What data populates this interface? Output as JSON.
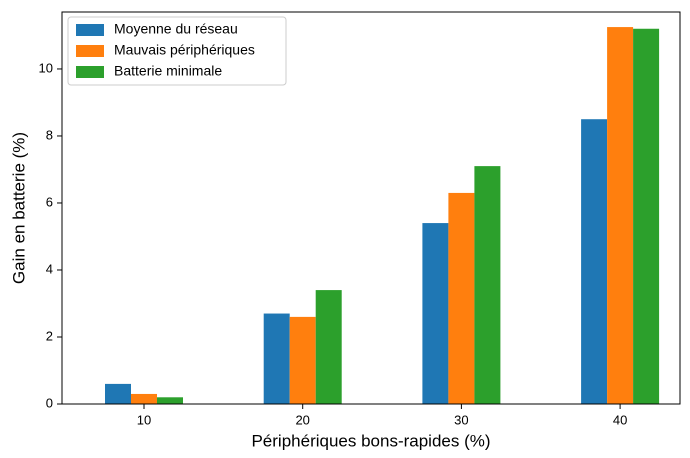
{
  "chart_data": {
    "type": "bar",
    "xlabel": "Périphériques bons-rapides (%)",
    "ylabel": "Gain en batterie (%)",
    "categories": [
      "10",
      "20",
      "30",
      "40"
    ],
    "series": [
      {
        "name": "Moyenne du réseau",
        "color": "#1f77b4",
        "values": [
          0.6,
          2.7,
          5.4,
          8.5
        ]
      },
      {
        "name": "Mauvais périphériques",
        "color": "#ff7f0e",
        "values": [
          0.3,
          2.6,
          6.3,
          11.25
        ]
      },
      {
        "name": "Batterie minimale",
        "color": "#2ca02c",
        "values": [
          0.2,
          3.4,
          7.1,
          11.2
        ]
      }
    ],
    "ylim": [
      0,
      11.7
    ],
    "yticks": [
      0,
      2,
      4,
      6,
      8,
      10
    ],
    "legend": "upper left"
  }
}
